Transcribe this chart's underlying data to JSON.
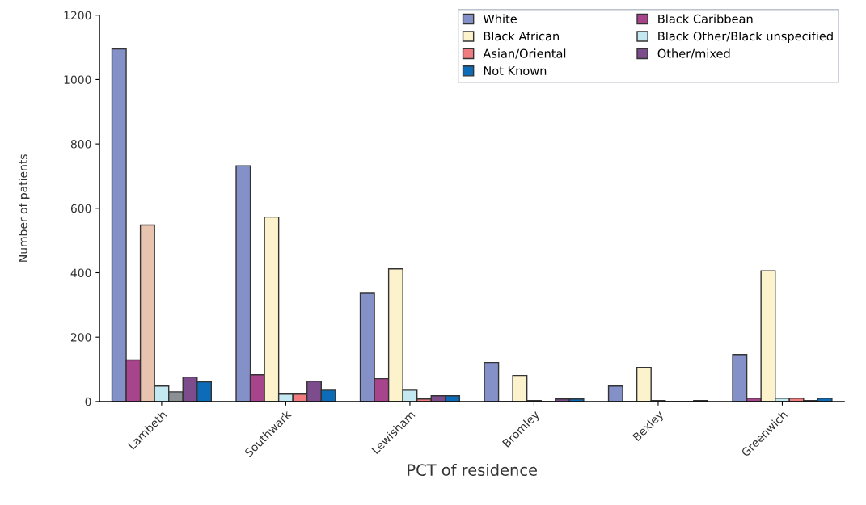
{
  "chart_data": {
    "type": "bar",
    "xlabel": "PCT of residence",
    "ylabel": "Number of patients",
    "categories": [
      "Lambeth",
      "Southwark",
      "Lewisham",
      "Bromley",
      "Bexley",
      "Greenwich"
    ],
    "series": [
      {
        "name": "White",
        "color": "#8490c8",
        "values": [
          1095,
          732,
          336,
          121,
          48,
          146
        ]
      },
      {
        "name": "Black Caribbean",
        "color": "#a8448c",
        "values": [
          129,
          83,
          71,
          null,
          null,
          10
        ]
      },
      {
        "name": "Black African",
        "color": "#fcf2cc",
        "colors": [
          "#e8c4b0",
          "#fcf2cc",
          "#fcf2cc",
          "#fcf2cc",
          "#fcf2cc",
          "#fcf2cc"
        ],
        "values": [
          548,
          573,
          412,
          81,
          106,
          406
        ]
      },
      {
        "name": "Black Other/Black unspecified",
        "color": "#c4e8f0",
        "values": [
          48,
          23,
          35,
          3,
          3,
          10
        ]
      },
      {
        "name": "Asian/Oriental",
        "color": "#f07c80",
        "colors": [
          "#8c9094",
          "#f07c80",
          "#f07c80",
          "#f07c80",
          "#f07c80",
          "#f07c80"
        ],
        "values": [
          30,
          23,
          8,
          null,
          null,
          10
        ]
      },
      {
        "name": "Other/mixed",
        "color": "#7c4c8c",
        "values": [
          76,
          63,
          18,
          8,
          null,
          3
        ]
      },
      {
        "name": "Not Known",
        "color": "#0c6cb8",
        "values": [
          61,
          35,
          18,
          8,
          3,
          10
        ]
      }
    ],
    "ylim": [
      0,
      1200
    ],
    "yticks": [
      0,
      200,
      400,
      600,
      800,
      1000,
      1200
    ],
    "grid": false,
    "legend": "top right"
  }
}
